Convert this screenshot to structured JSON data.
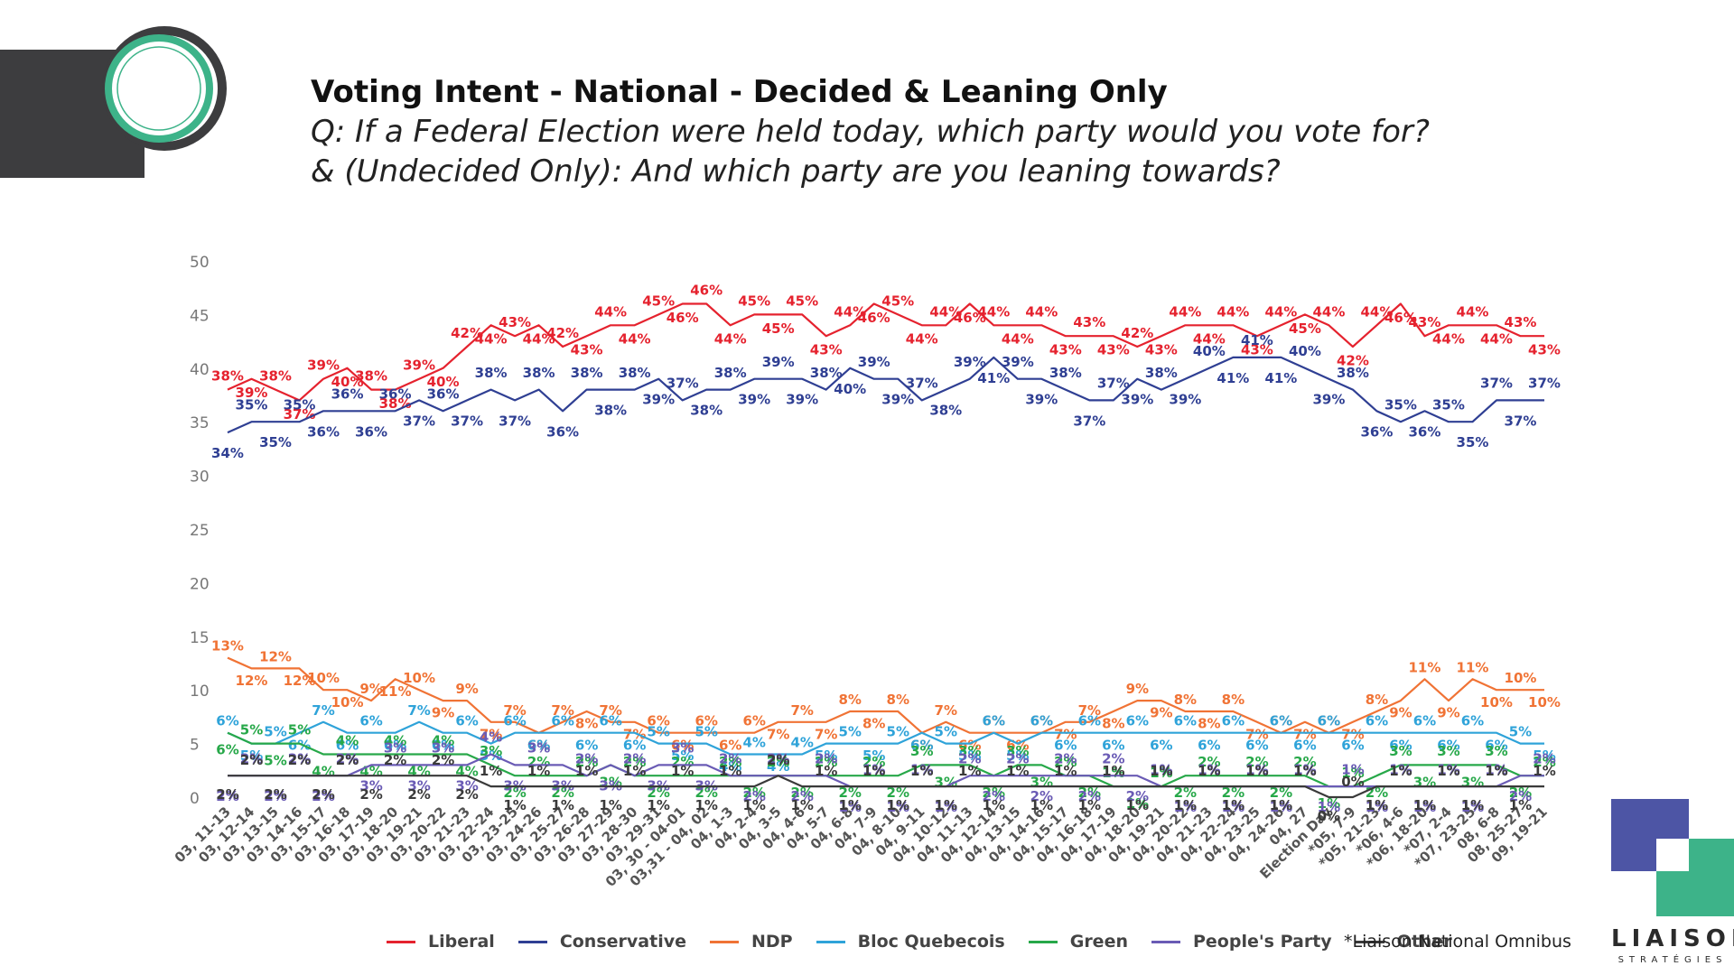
{
  "header": {
    "title": "Voting Intent - National - Decided & Leaning Only",
    "subtitle_line1": "Q: If a Federal Election were held today, which party would you vote for?",
    "subtitle_line2": "& (Undecided Only): And which party are you leaning towards?"
  },
  "source_note": "*Liaison National Omnibus",
  "brand": {
    "name": "LIAISON",
    "sub": "STRATÉGIES",
    "logo_colors": [
      "#4d55a5",
      "#3db389"
    ]
  },
  "colors": {
    "dark_block": "#3d3d3f",
    "ring_green": "#3db389",
    "ring_dark": "#3d3d3f"
  },
  "chart_data": {
    "type": "line",
    "ylim": [
      0,
      50
    ],
    "yticks": [
      0,
      5,
      10,
      15,
      20,
      25,
      30,
      35,
      40,
      45,
      50
    ],
    "gridlines": false,
    "legend_position": "bottom",
    "categories": [
      "03, 11-13",
      "03, 12-14",
      "03, 13-15",
      "03, 14-16",
      "03, 15-17",
      "03, 16-18",
      "03, 17-19",
      "03, 18-20",
      "03, 19-21",
      "03, 20-22",
      "03, 21-23",
      "03, 22-24",
      "03, 23-25",
      "03, 24-26",
      "03, 25-27",
      "03, 26-28",
      "03, 27-29",
      "03, 28-30",
      "03, 29-31",
      "03, 30 - 04-01",
      "03,31 - 04, 02",
      "04, 1-3",
      "04, 2-4",
      "04, 3-5",
      "04, 4-6",
      "04, 5-7",
      "04, 6-8",
      "04, 7-9",
      "04, 8-10",
      "04, 9-11",
      "04, 10-12",
      "04, 11-13",
      "04, 12-14",
      "04, 13-15",
      "04, 14-16",
      "04, 15-17",
      "04, 16-18",
      "04, 17-19",
      "04, 18-20",
      "04, 19-21",
      "04, 20-22",
      "04, 21-23",
      "04, 22-24",
      "04, 23-25",
      "04, 24-26",
      "04, 27",
      "Election Day",
      "*05, 7-9",
      "*05, 21-23",
      "*06, 4-6",
      "*06, 18-20",
      "*07, 2-4",
      "*07, 23-25",
      "08, 6-8",
      "08, 25-27",
      "09, 19-21"
    ],
    "series": [
      {
        "name": "Liberal",
        "color": "#e5222e",
        "values": [
          38,
          39,
          38,
          37,
          39,
          40,
          38,
          38,
          39,
          40,
          42,
          44,
          43,
          44,
          42,
          43,
          44,
          44,
          45,
          46,
          46,
          44,
          45,
          45,
          45,
          43,
          44,
          46,
          45,
          44,
          44,
          46,
          44,
          44,
          44,
          43,
          43,
          43,
          42,
          43,
          44,
          44,
          44,
          43,
          44,
          45,
          44,
          42,
          44,
          46,
          43,
          44,
          44,
          44,
          43,
          43
        ]
      },
      {
        "name": "Conservative",
        "color": "#2f3f93",
        "values": [
          34,
          35,
          35,
          35,
          36,
          36,
          36,
          36,
          37,
          36,
          37,
          38,
          37,
          38,
          36,
          38,
          38,
          38,
          39,
          37,
          38,
          38,
          39,
          39,
          39,
          38,
          40,
          39,
          39,
          37,
          38,
          39,
          41,
          39,
          39,
          38,
          37,
          37,
          39,
          38,
          39,
          40,
          41,
          41,
          41,
          40,
          39,
          38,
          36,
          35,
          36,
          35,
          35,
          37,
          37,
          37
        ]
      },
      {
        "name": "NDP",
        "color": "#f07335",
        "values": [
          13,
          12,
          12,
          12,
          10,
          10,
          9,
          11,
          10,
          9,
          9,
          7,
          7,
          6,
          7,
          8,
          7,
          7,
          6,
          6,
          6,
          6,
          6,
          7,
          7,
          7,
          8,
          8,
          8,
          6,
          7,
          6,
          6,
          6,
          6,
          7,
          7,
          8,
          9,
          9,
          8,
          8,
          8,
          7,
          6,
          7,
          6,
          7,
          8,
          9,
          11,
          9,
          11,
          10,
          10,
          10
        ]
      },
      {
        "name": "Bloc Quebecois",
        "color": "#2fa3d9",
        "values": [
          6,
          5,
          5,
          6,
          7,
          6,
          6,
          6,
          7,
          6,
          6,
          5,
          6,
          6,
          6,
          6,
          6,
          6,
          5,
          5,
          5,
          4,
          4,
          4,
          4,
          5,
          5,
          5,
          5,
          6,
          5,
          5,
          6,
          5,
          6,
          6,
          6,
          6,
          6,
          6,
          6,
          6,
          6,
          6,
          6,
          6,
          6,
          6,
          6,
          6,
          6,
          6,
          6,
          6,
          5,
          5
        ]
      },
      {
        "name": "Green",
        "color": "#27a849",
        "values": [
          6,
          5,
          5,
          5,
          4,
          4,
          4,
          4,
          4,
          4,
          4,
          3,
          2,
          2,
          2,
          2,
          3,
          2,
          2,
          2,
          2,
          2,
          2,
          2,
          2,
          2,
          2,
          2,
          2,
          3,
          3,
          3,
          2,
          3,
          3,
          2,
          2,
          1,
          1,
          1,
          2,
          2,
          2,
          2,
          2,
          2,
          1,
          1,
          2,
          3,
          3,
          3,
          3,
          3,
          2,
          2
        ]
      },
      {
        "name": "People's Party",
        "color": "#6a5bb5",
        "values": [
          2,
          2,
          2,
          2,
          2,
          2,
          3,
          3,
          3,
          3,
          3,
          4,
          3,
          3,
          3,
          2,
          3,
          2,
          3,
          3,
          3,
          2,
          2,
          2,
          2,
          2,
          1,
          1,
          1,
          1,
          1,
          2,
          2,
          2,
          2,
          2,
          2,
          2,
          2,
          1,
          1,
          1,
          1,
          1,
          1,
          1,
          1,
          1,
          1,
          1,
          1,
          1,
          1,
          1,
          2,
          2
        ]
      },
      {
        "name": "Other",
        "color": "#3a3a3a",
        "values": [
          2,
          2,
          2,
          2,
          2,
          2,
          2,
          2,
          2,
          2,
          2,
          1,
          1,
          1,
          1,
          1,
          1,
          1,
          1,
          1,
          1,
          1,
          1,
          2,
          1,
          1,
          1,
          1,
          1,
          1,
          1,
          1,
          1,
          1,
          1,
          1,
          1,
          1,
          1,
          1,
          1,
          1,
          1,
          1,
          1,
          1,
          0,
          0,
          1,
          1,
          1,
          1,
          1,
          1,
          1,
          1
        ]
      }
    ],
    "point_labels": [
      {
        "s": 0,
        "text": [
          "38%",
          "39%",
          "38%",
          "37%",
          "39%",
          "40%",
          "38%",
          "38%",
          "39%",
          "40%",
          "42%",
          "44%",
          "43%",
          "44%",
          "42%",
          "43%",
          "44%",
          "44%",
          "45%",
          "46%",
          "46%",
          "44%",
          "45%",
          "45%",
          "45%",
          "43%",
          "44%",
          "46%",
          "45%",
          "44%",
          "44%",
          "46%",
          "44%",
          "44%",
          "44%",
          "43%",
          "43%",
          "43%",
          "42%",
          "43%",
          "44%",
          "44%",
          "44%",
          "43%",
          "44%",
          "45%",
          "44%",
          "42%",
          "44%",
          "46%",
          "43%",
          "44%",
          "44%",
          "44%",
          "43%",
          "43%"
        ]
      }
    ]
  }
}
